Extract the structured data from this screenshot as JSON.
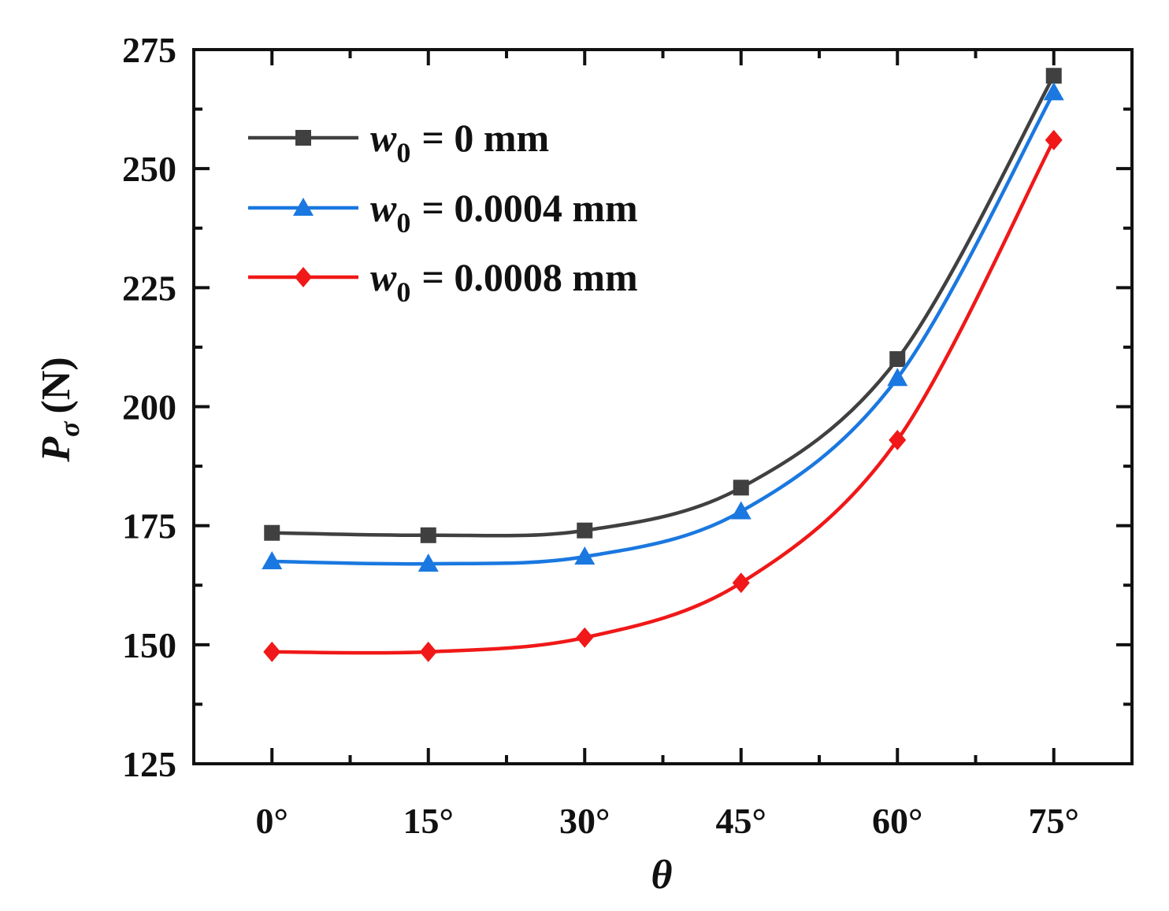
{
  "chart_data": {
    "type": "line",
    "title": "",
    "xlabel": "θ",
    "ylabel": {
      "main": "P",
      "subscript": "σ",
      "unit": "(N)"
    },
    "categories": [
      "0°",
      "15°",
      "30°",
      "45°",
      "60°",
      "75°"
    ],
    "x": [
      0,
      15,
      30,
      45,
      60,
      75
    ],
    "xlim": [
      -7.5,
      82.5
    ],
    "ylim": [
      125,
      275
    ],
    "yticks": [
      125,
      150,
      175,
      200,
      225,
      250,
      275
    ],
    "yticklabels": [
      "125",
      "150",
      "175",
      "200",
      "225",
      "250",
      "275"
    ],
    "grid": false,
    "legend_position": "top-left",
    "series": [
      {
        "name": "w0 = 0 mm",
        "label_var": "w",
        "label_sub": "0",
        "label_rest": "= 0 mm",
        "color": "#404040",
        "marker": "square",
        "values": [
          173.5,
          173,
          174,
          183,
          210,
          269.5
        ]
      },
      {
        "name": "w0 = 0.0004 mm",
        "label_var": "w",
        "label_sub": "0",
        "label_rest": "= 0.0004 mm",
        "color": "#1a78e0",
        "marker": "triangle",
        "values": [
          167.5,
          167,
          168.5,
          178,
          206,
          266
        ]
      },
      {
        "name": "w0 = 0.0008 mm",
        "label_var": "w",
        "label_sub": "0",
        "label_rest": "= 0.0008 mm",
        "color": "#f01818",
        "marker": "diamond",
        "values": [
          148.5,
          148.5,
          151.5,
          163,
          193,
          256
        ]
      }
    ]
  }
}
